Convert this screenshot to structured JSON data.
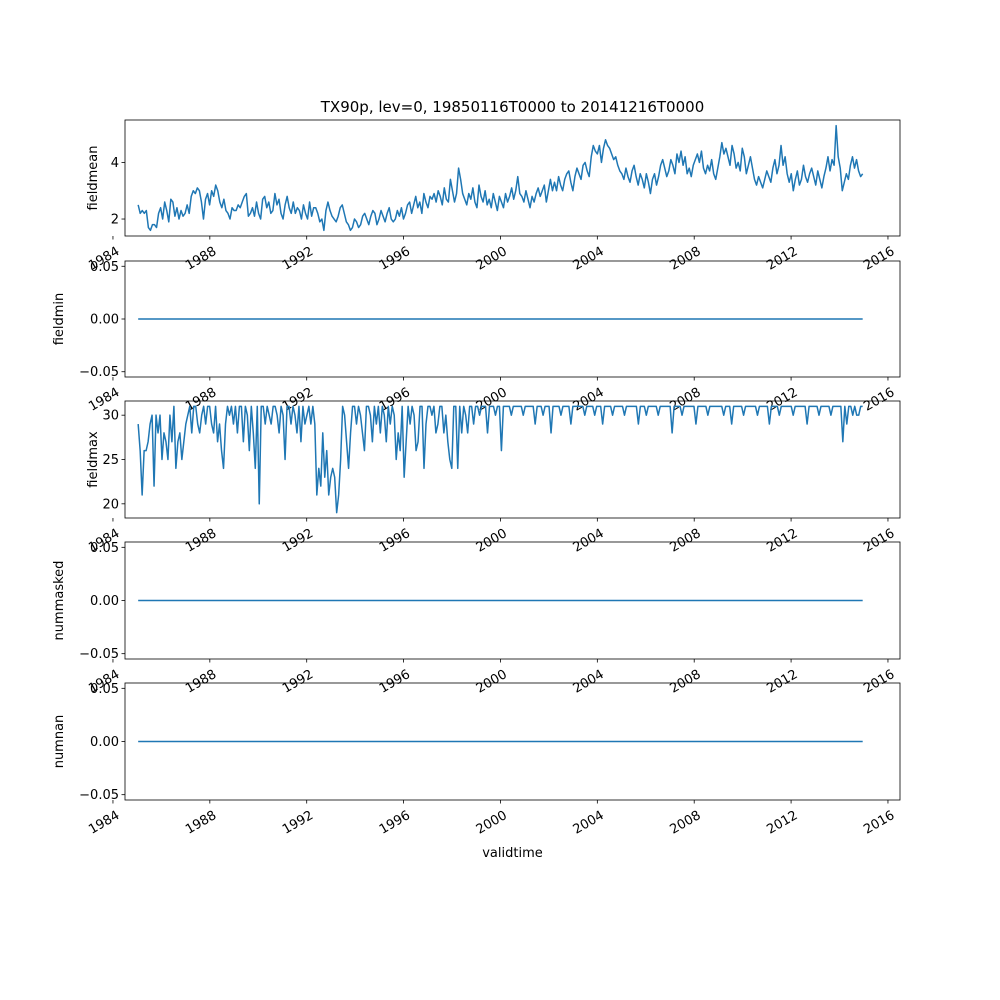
{
  "figure": {
    "title": "TX90p, lev=0, 19850116T0000 to 20141216T0000",
    "line_color": "#1f77b4"
  },
  "chart_data": [
    {
      "type": "line",
      "title": "TX90p, lev=0, 19850116T0000 to 20141216T0000",
      "ylabel": "fieldmean",
      "xlabel": "",
      "x_range": [
        "1985-01-16",
        "2014-12-16"
      ],
      "xlim": [
        "1984-07-01",
        "2016-07-01"
      ],
      "ylim": [
        1.4,
        5.5
      ],
      "yticks": [
        2,
        4
      ],
      "ytick_labels": [
        "2",
        "4"
      ],
      "xticks": [
        "1984-01-01",
        "1988-01-01",
        "1992-01-01",
        "1996-01-01",
        "2000-01-01",
        "2004-01-01",
        "2008-01-01",
        "2012-01-01",
        "2016-01-01"
      ],
      "xtick_labels": [
        "1984",
        "1988",
        "1992",
        "1996",
        "2000",
        "2004",
        "2008",
        "2012",
        "2016"
      ],
      "grid": false,
      "series": [
        {
          "values": [
            2.5,
            2.2,
            2.3,
            2.2,
            2.3,
            1.7,
            1.6,
            1.8,
            1.8,
            1.7,
            2.2,
            2.4,
            2.0,
            2.6,
            2.3,
            1.9,
            2.7,
            2.6,
            2.1,
            2.4,
            2.0,
            2.3,
            2.1,
            2.2,
            2.5,
            2.2,
            2.8,
            3.0,
            2.9,
            3.1,
            3.0,
            2.6,
            2.0,
            2.7,
            2.9,
            2.5,
            3.0,
            2.8,
            3.2,
            3.0,
            2.6,
            2.4,
            2.7,
            2.3,
            2.2,
            2.0,
            2.4,
            2.3,
            2.3,
            2.5,
            2.4,
            2.6,
            2.8,
            2.9,
            2.1,
            2.2,
            2.4,
            2.1,
            2.6,
            2.2,
            2.0,
            2.7,
            2.8,
            2.4,
            2.6,
            2.2,
            2.3,
            2.9,
            2.5,
            2.7,
            2.2,
            2.0,
            2.5,
            2.8,
            2.4,
            2.2,
            2.6,
            2.2,
            2.4,
            2.3,
            2.0,
            2.5,
            2.2,
            2.0,
            2.6,
            2.1,
            2.4,
            2.4,
            2.2,
            1.9,
            2.0,
            1.6,
            2.3,
            2.6,
            2.3,
            2.1,
            2.0,
            1.9,
            2.1,
            2.4,
            2.5,
            2.2,
            1.9,
            1.8,
            1.6,
            1.7,
            2.0,
            1.9,
            1.7,
            1.8,
            2.1,
            2.2,
            2.0,
            1.8,
            2.1,
            2.3,
            2.2,
            1.8,
            2.0,
            2.3,
            2.1,
            1.9,
            2.2,
            2.4,
            2.0,
            1.9,
            2.0,
            2.3,
            2.1,
            2.4,
            2.0,
            2.2,
            2.5,
            2.6,
            2.2,
            2.5,
            2.8,
            2.4,
            2.6,
            2.2,
            2.9,
            2.6,
            2.4,
            2.8,
            2.7,
            2.9,
            2.6,
            3.0,
            2.8,
            2.5,
            3.1,
            2.7,
            2.6,
            3.4,
            3.0,
            2.6,
            2.9,
            3.8,
            3.4,
            2.9,
            2.7,
            2.5,
            2.9,
            2.7,
            3.1,
            2.6,
            2.4,
            3.2,
            2.8,
            2.6,
            3.0,
            2.5,
            2.7,
            2.4,
            2.9,
            2.6,
            2.3,
            2.8,
            2.6,
            2.4,
            2.9,
            2.6,
            2.8,
            3.1,
            2.7,
            3.0,
            3.5,
            2.9,
            2.8,
            2.6,
            3.0,
            2.7,
            2.4,
            2.8,
            2.6,
            2.9,
            3.1,
            2.8,
            3.0,
            3.2,
            2.6,
            3.0,
            3.4,
            3.0,
            3.3,
            3.0,
            3.5,
            3.2,
            3.0,
            3.4,
            3.6,
            3.7,
            3.3,
            3.0,
            3.5,
            3.8,
            3.6,
            3.4,
            3.9,
            4.0,
            3.7,
            3.5,
            4.2,
            4.6,
            4.4,
            4.3,
            4.6,
            4.0,
            4.5,
            4.8,
            4.6,
            4.5,
            4.3,
            4.1,
            4.2,
            3.9,
            3.7,
            3.6,
            3.4,
            3.8,
            3.5,
            3.3,
            3.7,
            3.9,
            3.5,
            3.2,
            3.6,
            3.4,
            3.1,
            3.6,
            3.3,
            2.9,
            3.4,
            3.6,
            3.2,
            3.5,
            3.9,
            4.1,
            3.8,
            3.5,
            3.7,
            4.1,
            3.9,
            3.6,
            4.3,
            4.0,
            4.4,
            3.9,
            4.2,
            3.6,
            3.8,
            3.5,
            3.9,
            4.1,
            4.3,
            4.0,
            4.4,
            3.8,
            3.6,
            3.9,
            3.7,
            4.1,
            3.6,
            3.4,
            3.8,
            4.2,
            4.7,
            4.3,
            4.5,
            4.2,
            3.9,
            4.6,
            4.3,
            3.8,
            4.0,
            3.7,
            4.5,
            4.2,
            3.6,
            3.9,
            4.2,
            3.8,
            3.4,
            3.2,
            3.5,
            3.3,
            3.1,
            3.4,
            3.7,
            3.5,
            3.3,
            3.8,
            4.1,
            3.6,
            3.9,
            4.6,
            3.9,
            4.2,
            3.6,
            3.3,
            3.6,
            3.0,
            3.4,
            3.7,
            3.2,
            3.4,
            3.9,
            3.5,
            3.3,
            3.6,
            3.8,
            3.5,
            3.2,
            3.7,
            3.4,
            3.1,
            3.5,
            3.8,
            4.2,
            3.7,
            4.1,
            3.9,
            5.3,
            4.2,
            3.8,
            3.0,
            3.3,
            3.6,
            3.4,
            3.9,
            4.2,
            3.8,
            4.1,
            3.7,
            3.5,
            3.6
          ]
        }
      ]
    },
    {
      "type": "line",
      "ylabel": "fieldmin",
      "xlabel": "",
      "x_range": [
        "1985-01-16",
        "2014-12-16"
      ],
      "xlim": [
        "1984-07-01",
        "2016-07-01"
      ],
      "ylim": [
        -0.055,
        0.055
      ],
      "yticks": [
        -0.05,
        0.0,
        0.05
      ],
      "ytick_labels": [
        "−0.05",
        "0.00",
        "0.05"
      ],
      "xticks": [
        "1984-01-01",
        "1988-01-01",
        "1992-01-01",
        "1996-01-01",
        "2000-01-01",
        "2004-01-01",
        "2008-01-01",
        "2012-01-01",
        "2016-01-01"
      ],
      "xtick_labels": [
        "1984",
        "1988",
        "1992",
        "1996",
        "2000",
        "2004",
        "2008",
        "2012",
        "2016"
      ],
      "grid": false,
      "series": [
        {
          "constant": 0.0
        }
      ]
    },
    {
      "type": "line",
      "ylabel": "fieldmax",
      "xlabel": "",
      "x_range": [
        "1985-01-16",
        "2014-12-16"
      ],
      "xlim": [
        "1984-07-01",
        "2016-07-01"
      ],
      "ylim": [
        18.4,
        31.6
      ],
      "yticks": [
        20,
        25,
        30
      ],
      "ytick_labels": [
        "20",
        "25",
        "30"
      ],
      "xticks": [
        "1984-01-01",
        "1988-01-01",
        "1992-01-01",
        "1996-01-01",
        "2000-01-01",
        "2004-01-01",
        "2008-01-01",
        "2012-01-01",
        "2016-01-01"
      ],
      "xtick_labels": [
        "1984",
        "1988",
        "1992",
        "1996",
        "2000",
        "2004",
        "2008",
        "2012",
        "2016"
      ],
      "grid": false,
      "series": [
        {
          "values": [
            29,
            26,
            21,
            26,
            26,
            27,
            29,
            30,
            22,
            30,
            28,
            30,
            25,
            28,
            27,
            25,
            30,
            27,
            31,
            24,
            27,
            28,
            25,
            27,
            29,
            30,
            31,
            28,
            31,
            31,
            29,
            28,
            30,
            31,
            29,
            31,
            31,
            29,
            28,
            31,
            27,
            29,
            26,
            24,
            29,
            31,
            30,
            31,
            29,
            31,
            28,
            31,
            31,
            27,
            31,
            30,
            26,
            31,
            28,
            24,
            31,
            20,
            31,
            31,
            29,
            31,
            30,
            29,
            31,
            31,
            30,
            28,
            31,
            30,
            25,
            31,
            31,
            29,
            31,
            30,
            28,
            31,
            27,
            31,
            29,
            30,
            31,
            29,
            31,
            29,
            21,
            24,
            22,
            28,
            23,
            26,
            21,
            23,
            24,
            23,
            19,
            21,
            25,
            31,
            30,
            27,
            24,
            28,
            31,
            31,
            29,
            31,
            30,
            28,
            26,
            31,
            31,
            30,
            27,
            31,
            29,
            31,
            28,
            31,
            30,
            27,
            31,
            29,
            31,
            30,
            25,
            28,
            26,
            31,
            23,
            27,
            31,
            29,
            31,
            30,
            26,
            27,
            31,
            31,
            24,
            29,
            31,
            31,
            30,
            31,
            28,
            29,
            31,
            31,
            28,
            30,
            27,
            25,
            24,
            31,
            31,
            24,
            31,
            28,
            31,
            30,
            28,
            31,
            31,
            29,
            31,
            31,
            30,
            31,
            31,
            31,
            28,
            31,
            31,
            31,
            30,
            31,
            31,
            26,
            31,
            31,
            31,
            31,
            30,
            31,
            31,
            31,
            31,
            31,
            30,
            31,
            31,
            31,
            31,
            31,
            29,
            31,
            31,
            31,
            30,
            31,
            31,
            31,
            28,
            31,
            31,
            31,
            31,
            30,
            31,
            31,
            31,
            31,
            29,
            31,
            31,
            31,
            31,
            31,
            31,
            30,
            31,
            31,
            31,
            31,
            30,
            31,
            31,
            31,
            29,
            31,
            31,
            31,
            31,
            30,
            31,
            31,
            31,
            31,
            31,
            30,
            31,
            31,
            31,
            31,
            31,
            31,
            29,
            31,
            31,
            31,
            30,
            31,
            31,
            31,
            31,
            31,
            30,
            31,
            31,
            31,
            31,
            31,
            31,
            28,
            31,
            31,
            31,
            31,
            30,
            31,
            31,
            31,
            31,
            31,
            31,
            29,
            31,
            31,
            31,
            31,
            31,
            30,
            31,
            31,
            31,
            31,
            31,
            31,
            31,
            30,
            31,
            31,
            31,
            29,
            31,
            31,
            31,
            31,
            31,
            30,
            31,
            31,
            31,
            31,
            31,
            31,
            30,
            31,
            31,
            31,
            31,
            31,
            29,
            31,
            31,
            31,
            31,
            30,
            31,
            31,
            31,
            31,
            31,
            31,
            30,
            31,
            31,
            31,
            31,
            31,
            31,
            29,
            31,
            31,
            31,
            31,
            31,
            30,
            31,
            31,
            31,
            31,
            31,
            30,
            31,
            31,
            31,
            31,
            31,
            27,
            31,
            29,
            31,
            31,
            30,
            31,
            30,
            30,
            31,
            31
          ]
        }
      ]
    },
    {
      "type": "line",
      "ylabel": "nummasked",
      "xlabel": "",
      "x_range": [
        "1985-01-16",
        "2014-12-16"
      ],
      "xlim": [
        "1984-07-01",
        "2016-07-01"
      ],
      "ylim": [
        -0.055,
        0.055
      ],
      "yticks": [
        -0.05,
        0.0,
        0.05
      ],
      "ytick_labels": [
        "−0.05",
        "0.00",
        "0.05"
      ],
      "xticks": [
        "1984-01-01",
        "1988-01-01",
        "1992-01-01",
        "1996-01-01",
        "2000-01-01",
        "2004-01-01",
        "2008-01-01",
        "2012-01-01",
        "2016-01-01"
      ],
      "xtick_labels": [
        "1984",
        "1988",
        "1992",
        "1996",
        "2000",
        "2004",
        "2008",
        "2012",
        "2016"
      ],
      "grid": false,
      "series": [
        {
          "constant": 0.0
        }
      ]
    },
    {
      "type": "line",
      "ylabel": "numnan",
      "xlabel": "validtime",
      "x_range": [
        "1985-01-16",
        "2014-12-16"
      ],
      "xlim": [
        "1984-07-01",
        "2016-07-01"
      ],
      "ylim": [
        -0.055,
        0.055
      ],
      "yticks": [
        -0.05,
        0.0,
        0.05
      ],
      "ytick_labels": [
        "−0.05",
        "0.00",
        "0.05"
      ],
      "xticks": [
        "1984-01-01",
        "1988-01-01",
        "1992-01-01",
        "1996-01-01",
        "2000-01-01",
        "2004-01-01",
        "2008-01-01",
        "2012-01-01",
        "2016-01-01"
      ],
      "xtick_labels": [
        "1984",
        "1988",
        "1992",
        "1996",
        "2000",
        "2004",
        "2008",
        "2012",
        "2016"
      ],
      "grid": false,
      "series": [
        {
          "constant": 0.0
        }
      ]
    }
  ]
}
